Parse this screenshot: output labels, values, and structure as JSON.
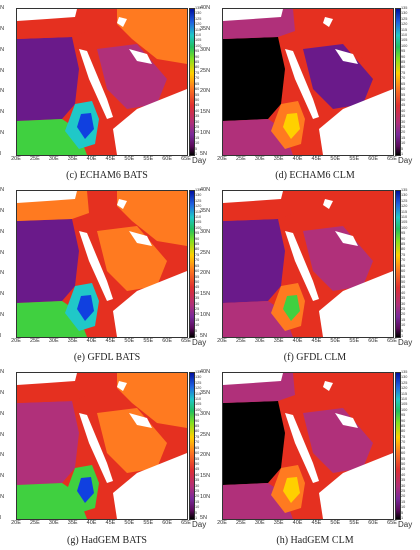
{
  "unit": "Day",
  "lat_ticks": [
    "40N",
    "35N",
    "30N",
    "25N",
    "20N",
    "15N",
    "10N",
    "5N"
  ],
  "lon_ticks": [
    "20E",
    "25E",
    "30E",
    "35E",
    "40E",
    "45E",
    "50E",
    "55E",
    "60E",
    "65E"
  ],
  "colorbar_ticks": [
    "135",
    "130",
    "125",
    "120",
    "115",
    "110",
    "105",
    "100",
    "95",
    "90",
    "85",
    "80",
    "75",
    "70",
    "65",
    "60",
    "55",
    "50",
    "45",
    "40",
    "35",
    "30",
    "25",
    "20",
    "15",
    "10",
    "5",
    "1"
  ],
  "colors": {
    "black": "#000000",
    "purple": "#6a1a8a",
    "magenta": "#b0307a",
    "red": "#e53020",
    "orange": "#ff7a20",
    "yellow": "#ffd000",
    "green": "#40d040",
    "cyan": "#20c8c8",
    "blue": "#1040e0",
    "navy": "#0010a0",
    "land": "#ffffff"
  },
  "panels": [
    {
      "caption": "(c)   ECHAM6 BATS",
      "variant": "echam_bats"
    },
    {
      "caption": "(d)   ECHAM6 CLM",
      "variant": "echam_clm"
    },
    {
      "caption": "(e)   GFDL BATS",
      "variant": "gfdl_bats"
    },
    {
      "caption": "(f)   GFDL CLM",
      "variant": "gfdl_clm"
    },
    {
      "caption": "(g)   HadGEM BATS",
      "variant": "hadgem_bats"
    },
    {
      "caption": "(h)   HadGEM CLM",
      "variant": "hadgem_clm"
    }
  ]
}
